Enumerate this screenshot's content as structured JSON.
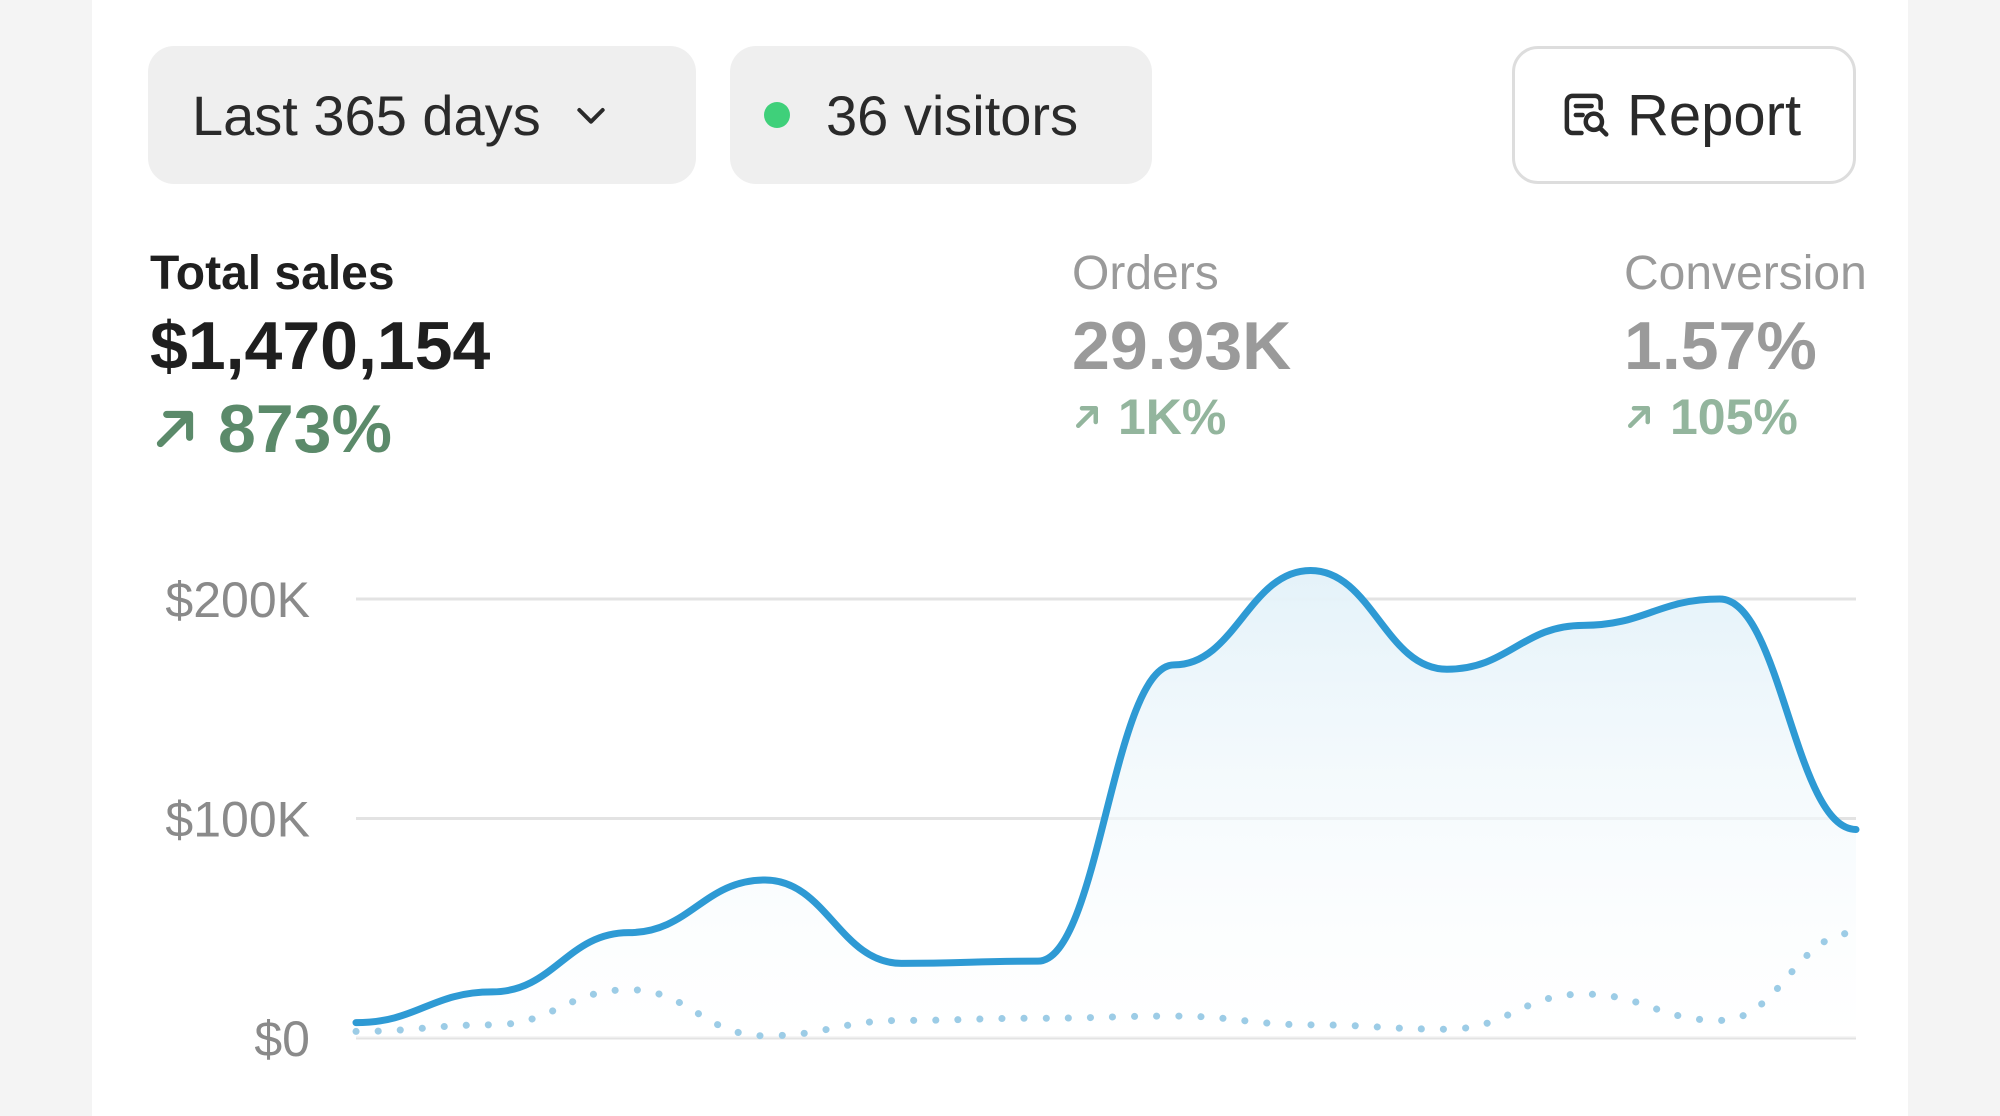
{
  "toolbar": {
    "range_label": "Last 365 days",
    "visitors_label": "36 visitors",
    "report_label": "Report"
  },
  "metrics": {
    "total_sales": {
      "label": "Total sales",
      "value": "$1,470,154",
      "change": "873%"
    },
    "orders": {
      "label": "Orders",
      "value": "29.93K",
      "change": "1K%"
    },
    "conversion": {
      "label": "Conversion",
      "value": "1.57%",
      "change": "105%"
    }
  },
  "colors": {
    "current_line": "#2e9ad4",
    "comparison_line": "#9ccce6",
    "area_fill_top": "#e4f2f9",
    "gridline": "#e3e3e3",
    "tick_text": "#8a8a8a",
    "live_dot": "#3fd07a",
    "positive_change": "#5b8a6a"
  },
  "icons": {
    "range_dropdown": "chevron-down-icon",
    "live": "live-dot-icon",
    "report": "report-search-icon",
    "change": "arrow-up-right-icon"
  },
  "chart_data": {
    "type": "area",
    "ylim": [
      0,
      200000
    ],
    "yticks": [
      0,
      100000,
      200000
    ],
    "ytick_labels": [
      "$0",
      "$100K",
      "$200K"
    ],
    "grid": true,
    "x_labels_shown": false,
    "x": [
      0,
      1,
      2,
      3,
      4,
      5,
      6,
      7,
      8,
      9,
      10,
      11
    ],
    "series": [
      {
        "style": "solid-with-area",
        "values": [
          7000,
          21000,
          48000,
          72000,
          34000,
          35000,
          170000,
          213000,
          168000,
          188000,
          200000,
          95000
        ]
      },
      {
        "style": "dotted",
        "values": [
          3000,
          6000,
          22000,
          1000,
          8000,
          9000,
          10000,
          6000,
          4000,
          20000,
          8000,
          48000
        ]
      }
    ]
  }
}
